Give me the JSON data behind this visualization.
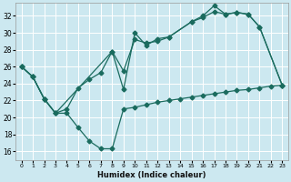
{
  "xlabel": "Humidex (Indice chaleur)",
  "bg_color": "#cce8f0",
  "line_color": "#1a6b5e",
  "xlim": [
    -0.5,
    23.5
  ],
  "ylim": [
    15.0,
    33.5
  ],
  "yticks": [
    16,
    18,
    20,
    22,
    24,
    26,
    28,
    30,
    32
  ],
  "xticks": [
    0,
    1,
    2,
    3,
    4,
    5,
    6,
    7,
    8,
    9,
    10,
    11,
    12,
    13,
    14,
    15,
    16,
    17,
    18,
    19,
    20,
    21,
    22,
    23
  ],
  "series": [
    {
      "x": [
        0,
        1,
        2,
        3,
        4,
        5,
        6,
        7,
        8,
        9,
        10,
        11,
        12,
        13,
        14,
        15,
        16,
        17,
        18,
        19,
        20,
        21,
        22,
        23
      ],
      "y": [
        26.0,
        24.8,
        22.2,
        20.5,
        20.5,
        18.8,
        17.2,
        16.3,
        16.3,
        21.0,
        21.2,
        21.5,
        21.8,
        22.0,
        22.2,
        22.4,
        22.6,
        22.8,
        23.0,
        23.2,
        23.3,
        23.5,
        23.7,
        23.8
      ],
      "style": "-",
      "marker": "D",
      "markersize": 2.5
    },
    {
      "x": [
        0,
        1,
        2,
        3,
        4,
        5,
        6,
        7,
        8,
        9,
        10,
        11,
        12,
        13,
        15,
        16,
        17,
        18,
        19,
        20,
        21,
        23
      ],
      "y": [
        26.0,
        24.8,
        22.2,
        20.5,
        21.0,
        23.5,
        24.5,
        25.3,
        27.8,
        25.5,
        29.2,
        28.8,
        29.0,
        29.5,
        31.3,
        31.8,
        32.5,
        32.2,
        32.4,
        32.2,
        30.7,
        23.8
      ],
      "style": "-",
      "marker": "D",
      "markersize": 2.5
    },
    {
      "x": [
        0,
        1,
        2,
        3,
        8,
        9,
        10,
        11,
        12,
        13,
        15,
        16,
        17,
        18,
        19,
        20,
        21,
        23
      ],
      "y": [
        26.0,
        24.8,
        22.2,
        20.5,
        27.8,
        23.3,
        30.0,
        28.5,
        29.3,
        29.5,
        31.3,
        32.0,
        33.2,
        32.2,
        32.4,
        32.2,
        30.7,
        23.8
      ],
      "style": "-",
      "marker": "D",
      "markersize": 2.5
    }
  ]
}
